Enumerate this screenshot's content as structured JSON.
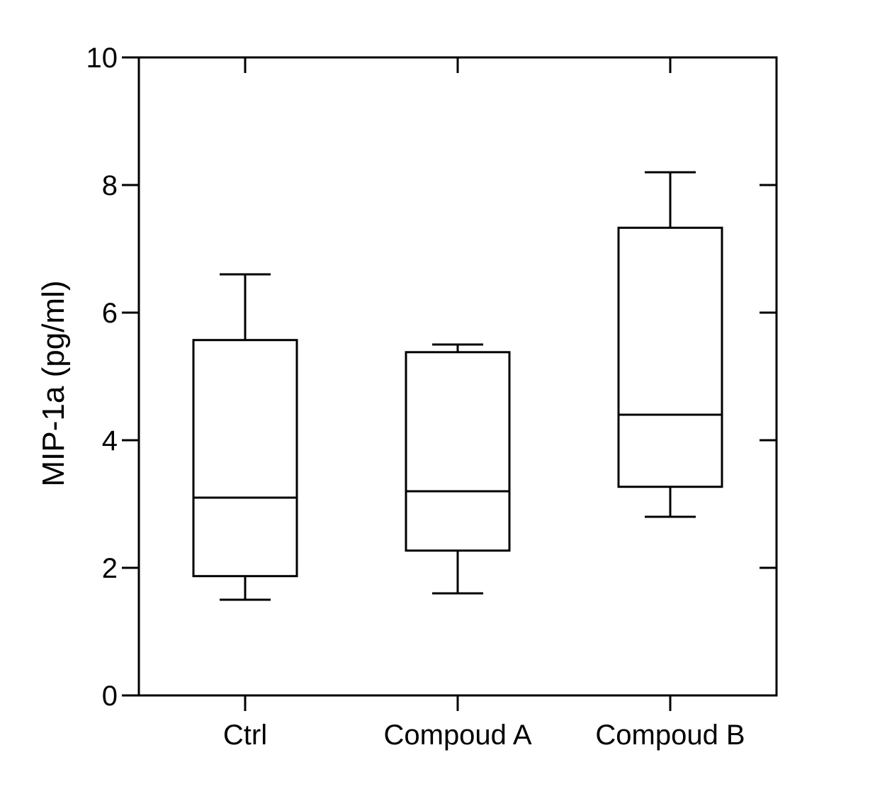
{
  "chart_data": {
    "type": "box",
    "title": "",
    "xlabel": "",
    "ylabel": "MIP-1a (pg/ml)",
    "ylim": [
      0,
      10
    ],
    "yticks": [
      "0",
      "2",
      "4",
      "6",
      "8",
      "10"
    ],
    "grid": false,
    "legend": "none",
    "categories": [
      "Ctrl",
      "Compoud A",
      "Compoud B"
    ],
    "boxes": [
      {
        "category": "Ctrl",
        "min": 1.5,
        "q1": 1.87,
        "median": 3.1,
        "q3": 5.57,
        "max": 6.6
      },
      {
        "category": "Compoud A",
        "min": 1.6,
        "q1": 2.27,
        "median": 3.2,
        "q3": 5.38,
        "max": 5.5
      },
      {
        "category": "Compoud B",
        "min": 2.8,
        "q1": 3.27,
        "median": 4.4,
        "q3": 7.33,
        "max": 8.2
      }
    ],
    "colors": {
      "line": "#000000",
      "box_fill": "#ffffff"
    }
  }
}
